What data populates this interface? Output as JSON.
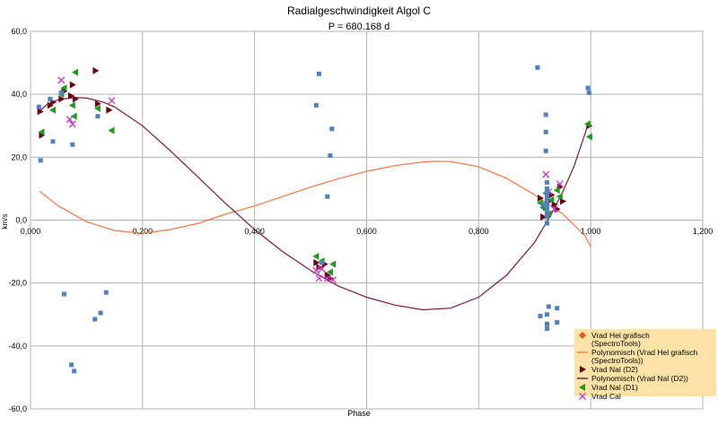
{
  "chart_data": {
    "type": "scatter",
    "title": "Radialgeschwindigkeit Algol C",
    "subtitle": "P = 680.168 d",
    "xlabel": "Phase",
    "ylabel": "km/s",
    "xlim": [
      0,
      1.2
    ],
    "ylim": [
      -60,
      60
    ],
    "x_ticks": [
      0,
      0.2,
      0.4,
      0.6,
      0.8,
      1.0,
      1.2
    ],
    "y_ticks": [
      -60,
      -40,
      -20,
      0,
      20,
      40,
      60
    ],
    "x_tick_labels": [
      "0,000",
      "0,200",
      "0,400",
      "0,600",
      "0,800",
      "1,000",
      "1,200"
    ],
    "y_tick_labels": [
      "-60,0",
      "-40,0",
      "-20,0",
      "0,0",
      "20,0",
      "40,0",
      "60,0"
    ],
    "grid": true,
    "legend_position": "bottom-right",
    "series": [
      {
        "name": "Vrad Hel grafisch (SpectroTools)",
        "kind": "points",
        "marker": "diamond",
        "color": "#e8571e",
        "points": []
      },
      {
        "name": "Polynomisch (Vrad Hel grafisch (SpectroTools))",
        "kind": "line",
        "color": "#f07848",
        "curve": [
          [
            0.016,
            9.2
          ],
          [
            0.05,
            4.5
          ],
          [
            0.1,
            -0.5
          ],
          [
            0.15,
            -3.3
          ],
          [
            0.2,
            -4.2
          ],
          [
            0.25,
            -3.0
          ],
          [
            0.3,
            -1.0
          ],
          [
            0.35,
            2.0
          ],
          [
            0.4,
            4.5
          ],
          [
            0.45,
            7.5
          ],
          [
            0.5,
            10.5
          ],
          [
            0.55,
            13.2
          ],
          [
            0.6,
            15.5
          ],
          [
            0.65,
            17.3
          ],
          [
            0.7,
            18.5
          ],
          [
            0.72,
            18.7
          ],
          [
            0.75,
            18.6
          ],
          [
            0.8,
            17.0
          ],
          [
            0.85,
            13.3
          ],
          [
            0.9,
            8.0
          ],
          [
            0.95,
            2.0
          ],
          [
            0.99,
            -5.0
          ],
          [
            1.0,
            -8.5
          ]
        ]
      },
      {
        "name": "Vrad Nal (D2)",
        "kind": "points",
        "marker": "triangle-right",
        "color": "#6a0010",
        "points": [
          [
            0.017,
            34.5
          ],
          [
            0.02,
            27
          ],
          [
            0.035,
            36.5
          ],
          [
            0.04,
            37.5
          ],
          [
            0.055,
            38.5
          ],
          [
            0.06,
            41
          ],
          [
            0.072,
            39.5
          ],
          [
            0.075,
            43
          ],
          [
            0.08,
            38.5
          ],
          [
            0.116,
            47.5
          ],
          [
            0.12,
            37
          ],
          [
            0.14,
            35
          ],
          [
            0.51,
            -13.5
          ],
          [
            0.515,
            -15
          ],
          [
            0.525,
            -14
          ],
          [
            0.53,
            -17.5
          ],
          [
            0.535,
            -18.5
          ],
          [
            0.91,
            7
          ],
          [
            0.915,
            1
          ],
          [
            0.92,
            4
          ],
          [
            0.925,
            6
          ],
          [
            0.93,
            8
          ],
          [
            0.935,
            5
          ],
          [
            0.94,
            3.5
          ],
          [
            0.945,
            10.5
          ],
          [
            0.95,
            6
          ],
          [
            0.997,
            30
          ]
        ]
      },
      {
        "name": "Polynomisch (Vrad Nal (D2))",
        "kind": "line",
        "color": "#7a1a3a",
        "curve": [
          [
            0.015,
            34.5
          ],
          [
            0.03,
            36.8
          ],
          [
            0.05,
            38.3
          ],
          [
            0.08,
            39.0
          ],
          [
            0.1,
            38.8
          ],
          [
            0.13,
            37.5
          ],
          [
            0.15,
            36.0
          ],
          [
            0.2,
            30.0
          ],
          [
            0.25,
            22.0
          ],
          [
            0.3,
            13.5
          ],
          [
            0.35,
            5.0
          ],
          [
            0.4,
            -3.0
          ],
          [
            0.45,
            -10.0
          ],
          [
            0.5,
            -16.0
          ],
          [
            0.55,
            -21.0
          ],
          [
            0.6,
            -24.5
          ],
          [
            0.65,
            -27.0
          ],
          [
            0.7,
            -28.5
          ],
          [
            0.75,
            -28.0
          ],
          [
            0.8,
            -24.5
          ],
          [
            0.85,
            -17.5
          ],
          [
            0.9,
            -7.0
          ],
          [
            0.93,
            2.0
          ],
          [
            0.95,
            9.0
          ],
          [
            0.97,
            17.0
          ],
          [
            0.99,
            27.5
          ],
          [
            0.997,
            31.5
          ]
        ]
      },
      {
        "name": "Vrad Nal (D1)",
        "kind": "points",
        "marker": "triangle-left",
        "color": "#1e9a1e",
        "points": [
          [
            0.02,
            28
          ],
          [
            0.04,
            35
          ],
          [
            0.055,
            40
          ],
          [
            0.06,
            42
          ],
          [
            0.075,
            36.5
          ],
          [
            0.078,
            33
          ],
          [
            0.08,
            47
          ],
          [
            0.12,
            35.5
          ],
          [
            0.145,
            28.5
          ],
          [
            0.51,
            -11.5
          ],
          [
            0.52,
            -13
          ],
          [
            0.535,
            -16.5
          ],
          [
            0.54,
            -14
          ],
          [
            0.91,
            5.5
          ],
          [
            0.915,
            4
          ],
          [
            0.92,
            8.5
          ],
          [
            0.925,
            2
          ],
          [
            0.93,
            6.5
          ],
          [
            0.94,
            9.5
          ],
          [
            0.945,
            7.5
          ],
          [
            0.995,
            30.5
          ],
          [
            0.998,
            26.5
          ]
        ]
      },
      {
        "name": "Vrad Cal",
        "kind": "points",
        "marker": "x",
        "color": "#cc33cc",
        "points": [
          [
            0.055,
            44.5
          ],
          [
            0.07,
            32
          ],
          [
            0.075,
            30.5
          ],
          [
            0.145,
            38
          ],
          [
            0.51,
            -16
          ],
          [
            0.515,
            -18.5
          ],
          [
            0.52,
            -15.5
          ],
          [
            0.53,
            -18.5
          ],
          [
            0.54,
            -19
          ],
          [
            0.92,
            14.5
          ],
          [
            0.925,
            9
          ],
          [
            0.935,
            3.5
          ],
          [
            0.945,
            11.5
          ]
        ]
      },
      {
        "name": "",
        "kind": "points",
        "marker": "square",
        "color": "#4f81bd",
        "points": [
          [
            0.015,
            36
          ],
          [
            0.018,
            19
          ],
          [
            0.035,
            38.5
          ],
          [
            0.04,
            25
          ],
          [
            0.055,
            40.5
          ],
          [
            0.06,
            -23.5
          ],
          [
            0.075,
            24
          ],
          [
            0.073,
            -46
          ],
          [
            0.078,
            -48
          ],
          [
            0.115,
            -31.5
          ],
          [
            0.12,
            33
          ],
          [
            0.125,
            -29.5
          ],
          [
            0.135,
            -23
          ],
          [
            0.51,
            36.5
          ],
          [
            0.515,
            46.5
          ],
          [
            0.52,
            -13.5
          ],
          [
            0.53,
            7.5
          ],
          [
            0.535,
            20.5
          ],
          [
            0.538,
            29
          ],
          [
            0.905,
            48.5
          ],
          [
            0.91,
            -30.5
          ],
          [
            0.915,
            5
          ],
          [
            0.92,
            33.5
          ],
          [
            0.92,
            28
          ],
          [
            0.92,
            22
          ],
          [
            0.922,
            12
          ],
          [
            0.922,
            10
          ],
          [
            0.922,
            9
          ],
          [
            0.922,
            8
          ],
          [
            0.922,
            7
          ],
          [
            0.922,
            6
          ],
          [
            0.922,
            5
          ],
          [
            0.922,
            4
          ],
          [
            0.922,
            3
          ],
          [
            0.922,
            2
          ],
          [
            0.922,
            1
          ],
          [
            0.922,
            -1
          ],
          [
            0.922,
            -30
          ],
          [
            0.922,
            -33
          ],
          [
            0.922,
            -34.5
          ],
          [
            0.925,
            -27.5
          ],
          [
            0.94,
            -28
          ],
          [
            0.94,
            -32.5
          ],
          [
            0.995,
            42
          ],
          [
            0.997,
            40.5
          ]
        ]
      }
    ]
  }
}
